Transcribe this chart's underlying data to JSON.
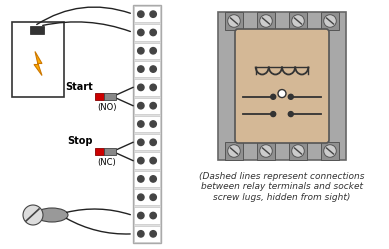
{
  "bg_color": "#ffffff",
  "terminal_strip_color": "#e0e0e0",
  "terminal_strip_border": "#aaaaaa",
  "screw_dark": "#444444",
  "screw_light": "#888888",
  "relay_socket_bg": "#a8a8a8",
  "relay_body_bg": "#d4b896",
  "wire_color": "#222222",
  "red_color": "#cc0000",
  "gray_connector": "#888888",
  "start_label": "Start",
  "stop_label": "Stop",
  "no_label": "(NO)",
  "nc_label": "(NC)",
  "caption": "(Dashed lines represent connections\nbetween relay terminals and socket\nscrew lugs, hidden from sight)",
  "caption_fontsize": 6.5,
  "label_fontsize": 7,
  "dashed_color": "#555555",
  "ps_box_color": "#ffffff",
  "ps_border": "#333333",
  "bolt_color": "#ffaa00",
  "bolt_edge": "#cc7700"
}
